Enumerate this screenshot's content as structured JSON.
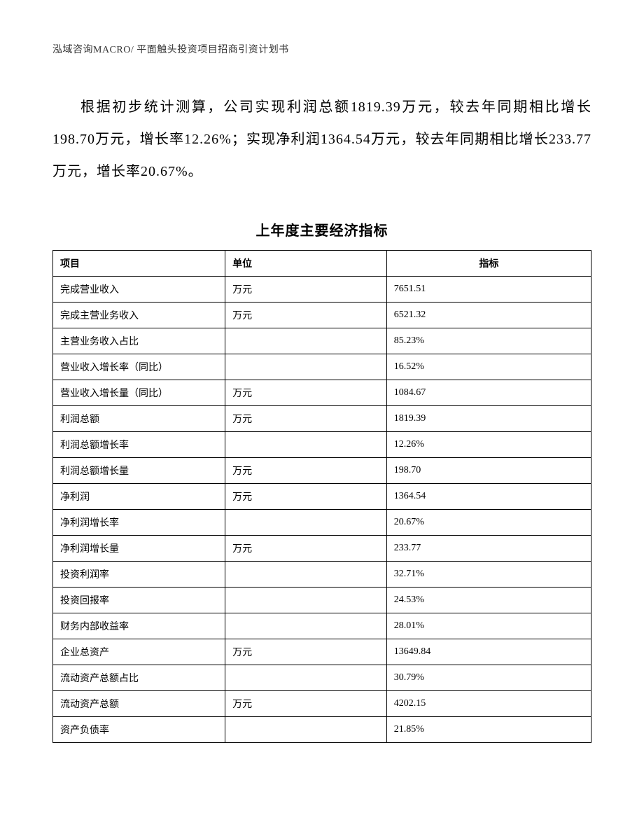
{
  "header": {
    "text": "泓域咨询MACRO/ 平面触头投资项目招商引资计划书"
  },
  "paragraph": {
    "text": "根据初步统计测算，公司实现利润总额1819.39万元，较去年同期相比增长198.70万元，增长率12.26%；实现净利润1364.54万元，较去年同期相比增长233.77万元，增长率20.67%。"
  },
  "table": {
    "title": "上年度主要经济指标",
    "columns": [
      "项目",
      "单位",
      "指标"
    ],
    "rows": [
      {
        "item": "完成营业收入",
        "unit": "万元",
        "value": "7651.51"
      },
      {
        "item": "完成主营业务收入",
        "unit": "万元",
        "value": "6521.32"
      },
      {
        "item": "主营业务收入占比",
        "unit": "",
        "value": "85.23%"
      },
      {
        "item": "营业收入增长率（同比）",
        "unit": "",
        "value": "16.52%"
      },
      {
        "item": "营业收入增长量（同比）",
        "unit": "万元",
        "value": "1084.67"
      },
      {
        "item": "利润总额",
        "unit": "万元",
        "value": "1819.39"
      },
      {
        "item": "利润总额增长率",
        "unit": "",
        "value": "12.26%"
      },
      {
        "item": "利润总额增长量",
        "unit": "万元",
        "value": "198.70"
      },
      {
        "item": "净利润",
        "unit": "万元",
        "value": "1364.54"
      },
      {
        "item": "净利润增长率",
        "unit": "",
        "value": "20.67%"
      },
      {
        "item": "净利润增长量",
        "unit": "万元",
        "value": "233.77"
      },
      {
        "item": "投资利润率",
        "unit": "",
        "value": "32.71%"
      },
      {
        "item": "投资回报率",
        "unit": "",
        "value": "24.53%"
      },
      {
        "item": "财务内部收益率",
        "unit": "",
        "value": "28.01%"
      },
      {
        "item": "企业总资产",
        "unit": "万元",
        "value": "13649.84"
      },
      {
        "item": "流动资产总额占比",
        "unit": "",
        "value": "30.79%"
      },
      {
        "item": "流动资产总额",
        "unit": "万元",
        "value": "4202.15"
      },
      {
        "item": "资产负债率",
        "unit": "",
        "value": "21.85%"
      }
    ]
  }
}
